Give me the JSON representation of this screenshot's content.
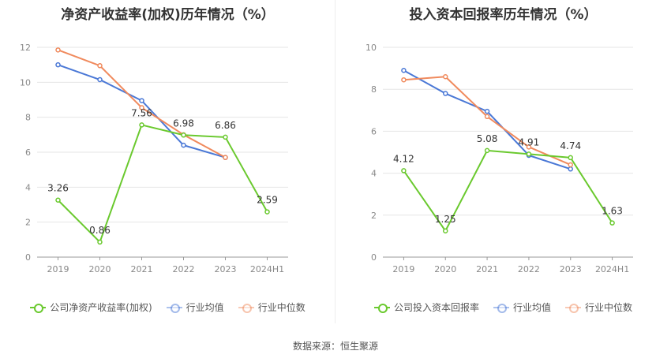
{
  "footer": {
    "source": "数据来源：恒生聚源"
  },
  "colors": {
    "company": "#6ac92e",
    "industry_avg": "#4a78d6",
    "industry_median": "#f08a5d"
  },
  "chart_data": [
    {
      "type": "line",
      "title": "净资产收益率(加权)历年情况（%）",
      "categories": [
        "2019",
        "2020",
        "2021",
        "2022",
        "2023",
        "2024H1"
      ],
      "ylim": [
        0,
        12
      ],
      "yticks": [
        "0",
        "2",
        "4",
        "6",
        "8",
        "10",
        "12"
      ],
      "grid": true,
      "legend_position": "bottom",
      "series": [
        {
          "name": "公司净资产收益率(加权)",
          "color": "#6ac92e",
          "values": [
            3.26,
            0.86,
            7.56,
            6.98,
            6.86,
            2.59
          ],
          "labels": [
            "3.26",
            "0.86",
            "7.56",
            "6.98",
            "6.86",
            "2.59"
          ]
        },
        {
          "name": "行业均值",
          "color": "#4a78d6",
          "values": [
            11.0,
            10.15,
            8.95,
            6.4,
            5.7,
            null
          ]
        },
        {
          "name": "行业中位数",
          "color": "#f08a5d",
          "values": [
            11.85,
            10.95,
            8.55,
            7.0,
            5.7,
            null
          ]
        }
      ]
    },
    {
      "type": "line",
      "title": "投入资本回报率历年情况（%）",
      "categories": [
        "2019",
        "2020",
        "2021",
        "2022",
        "2023",
        "2024H1"
      ],
      "ylim": [
        0,
        10
      ],
      "yticks": [
        "0",
        "2",
        "4",
        "6",
        "8",
        "10"
      ],
      "grid": true,
      "legend_position": "bottom",
      "series": [
        {
          "name": "公司投入资本回报率",
          "color": "#6ac92e",
          "values": [
            4.12,
            1.25,
            5.08,
            4.91,
            4.74,
            1.63
          ],
          "labels": [
            "4.12",
            "1.25",
            "5.08",
            "4.91",
            "4.74",
            "1.63"
          ]
        },
        {
          "name": "行业均值",
          "color": "#4a78d6",
          "values": [
            8.9,
            7.8,
            6.95,
            4.85,
            4.2,
            null
          ]
        },
        {
          "name": "行业中位数",
          "color": "#f08a5d",
          "values": [
            8.45,
            8.6,
            6.7,
            5.25,
            4.4,
            null
          ]
        }
      ]
    }
  ]
}
